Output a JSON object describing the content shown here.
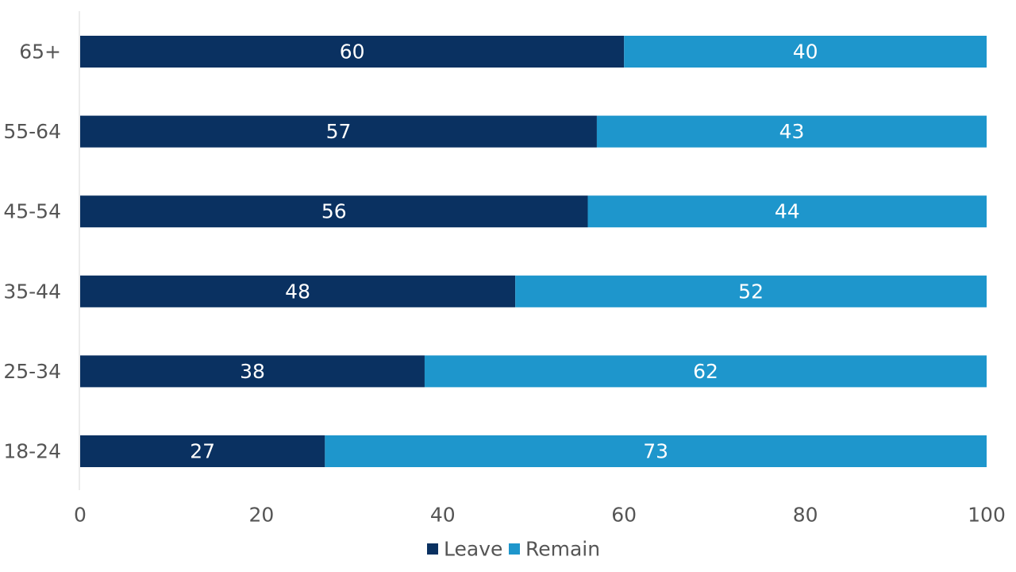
{
  "chart_data": {
    "type": "bar",
    "orientation": "horizontal",
    "stacked": true,
    "categories": [
      "65+",
      "55-64",
      "45-54",
      "35-44",
      "25-34",
      "18-24"
    ],
    "series": [
      {
        "name": "Leave",
        "color": "#0a3161",
        "values": [
          60,
          57,
          56,
          48,
          38,
          27
        ]
      },
      {
        "name": "Remain",
        "color": "#1e96cc",
        "values": [
          40,
          43,
          44,
          52,
          62,
          73
        ]
      }
    ],
    "xlim": [
      0,
      100
    ],
    "xticks": [
      "0",
      "20",
      "40",
      "60",
      "80",
      "100"
    ],
    "grid": false,
    "legend_position": "bottom-center",
    "title": "",
    "xlabel": "",
    "ylabel": ""
  }
}
